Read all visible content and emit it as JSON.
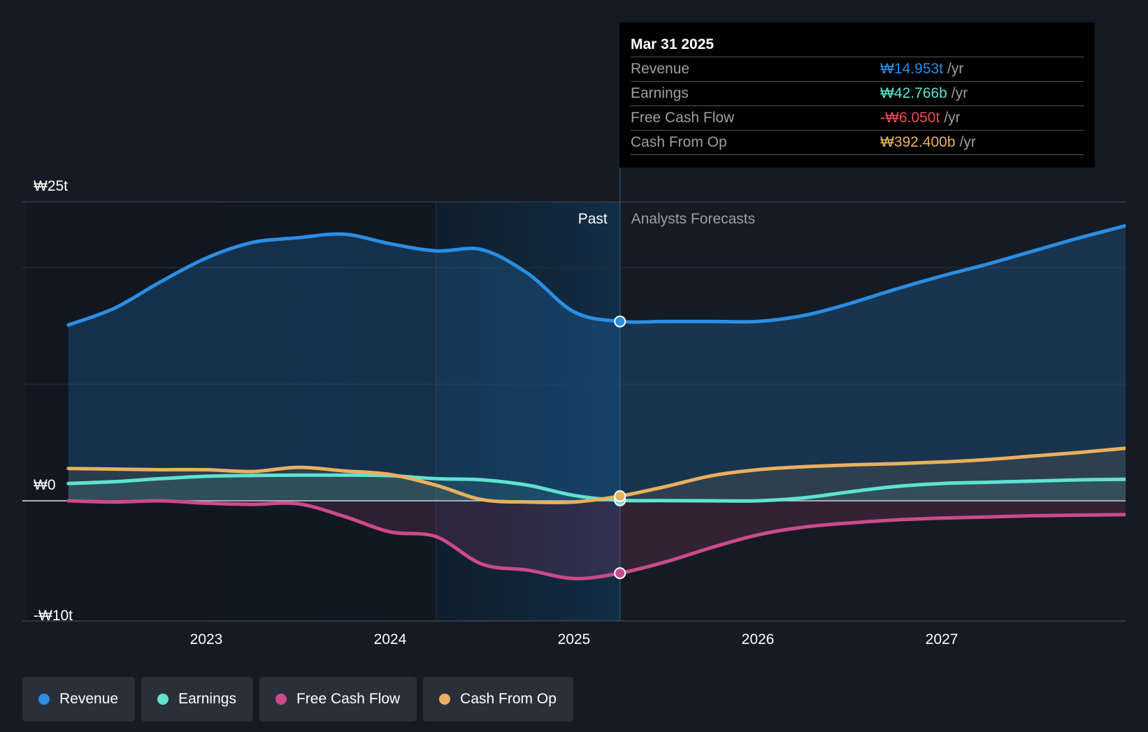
{
  "chart_data": {
    "type": "area",
    "currency_symbol": "₩",
    "y_unit": "trillion KRW",
    "ylim": [
      -10,
      25
    ],
    "y_ticks": [
      {
        "value": 25,
        "label": "₩25t"
      },
      {
        "value": 0,
        "label": "₩0"
      },
      {
        "value": -10,
        "label": "-₩10t"
      }
    ],
    "x_ticks": [
      {
        "value": 2023,
        "label": "2023"
      },
      {
        "value": 2024,
        "label": "2024"
      },
      {
        "value": 2025,
        "label": "2025"
      },
      {
        "value": 2026,
        "label": "2026"
      },
      {
        "value": 2027,
        "label": "2027"
      }
    ],
    "xlim": [
      2022.0,
      2028.0
    ],
    "past_label": "Past",
    "forecast_label": "Analysts Forecasts",
    "divider_x": 2025.25,
    "highlight_start_x": 2024.25,
    "series": [
      {
        "name": "Revenue",
        "color": "#2a8ee4",
        "fill": true,
        "points": [
          [
            2022.25,
            14.7
          ],
          [
            2022.5,
            16.1
          ],
          [
            2022.75,
            18.3
          ],
          [
            2023.0,
            20.3
          ],
          [
            2023.25,
            21.6
          ],
          [
            2023.5,
            22.0
          ],
          [
            2023.75,
            22.3
          ],
          [
            2024.0,
            21.5
          ],
          [
            2024.25,
            20.9
          ],
          [
            2024.5,
            21.0
          ],
          [
            2024.75,
            19.0
          ],
          [
            2025.0,
            15.8
          ],
          [
            2025.25,
            15.0
          ],
          [
            2025.5,
            15.0
          ],
          [
            2025.75,
            15.0
          ],
          [
            2026.0,
            15.0
          ],
          [
            2026.25,
            15.5
          ],
          [
            2026.5,
            16.5
          ],
          [
            2026.75,
            17.7
          ],
          [
            2027.0,
            18.8
          ],
          [
            2027.25,
            19.8
          ],
          [
            2027.5,
            20.9
          ],
          [
            2027.75,
            22.0
          ],
          [
            2028.0,
            23.0
          ]
        ]
      },
      {
        "name": "Earnings",
        "color": "#5ee3d1",
        "fill": true,
        "points": [
          [
            2022.25,
            1.45
          ],
          [
            2022.5,
            1.6
          ],
          [
            2022.75,
            1.85
          ],
          [
            2023.0,
            2.05
          ],
          [
            2023.25,
            2.12
          ],
          [
            2023.5,
            2.15
          ],
          [
            2023.75,
            2.15
          ],
          [
            2024.0,
            2.1
          ],
          [
            2024.25,
            1.85
          ],
          [
            2024.5,
            1.75
          ],
          [
            2024.75,
            1.3
          ],
          [
            2025.0,
            0.45
          ],
          [
            2025.25,
            0.04
          ],
          [
            2025.5,
            0.02
          ],
          [
            2025.75,
            0.0
          ],
          [
            2026.0,
            0.0
          ],
          [
            2026.25,
            0.25
          ],
          [
            2026.5,
            0.75
          ],
          [
            2026.75,
            1.2
          ],
          [
            2027.0,
            1.45
          ],
          [
            2027.25,
            1.55
          ],
          [
            2027.5,
            1.65
          ],
          [
            2027.75,
            1.75
          ],
          [
            2028.0,
            1.8
          ]
        ]
      },
      {
        "name": "Free Cash Flow",
        "color": "#cc4a8b",
        "fill": true,
        "points": [
          [
            2022.25,
            0.0
          ],
          [
            2022.5,
            -0.1
          ],
          [
            2022.75,
            0.0
          ],
          [
            2023.0,
            -0.2
          ],
          [
            2023.25,
            -0.3
          ],
          [
            2023.5,
            -0.25
          ],
          [
            2023.75,
            -1.3
          ],
          [
            2024.0,
            -2.6
          ],
          [
            2024.25,
            -3.0
          ],
          [
            2024.5,
            -5.3
          ],
          [
            2024.75,
            -5.8
          ],
          [
            2025.0,
            -6.5
          ],
          [
            2025.25,
            -6.05
          ],
          [
            2025.5,
            -5.1
          ],
          [
            2025.75,
            -3.9
          ],
          [
            2026.0,
            -2.85
          ],
          [
            2026.25,
            -2.2
          ],
          [
            2026.5,
            -1.85
          ],
          [
            2026.75,
            -1.6
          ],
          [
            2027.0,
            -1.45
          ],
          [
            2027.25,
            -1.35
          ],
          [
            2027.5,
            -1.25
          ],
          [
            2027.75,
            -1.2
          ],
          [
            2028.0,
            -1.15
          ]
        ]
      },
      {
        "name": "Cash From Op",
        "color": "#e9b05f",
        "fill": true,
        "points": [
          [
            2022.25,
            2.7
          ],
          [
            2022.5,
            2.65
          ],
          [
            2022.75,
            2.6
          ],
          [
            2023.0,
            2.6
          ],
          [
            2023.25,
            2.45
          ],
          [
            2023.5,
            2.8
          ],
          [
            2023.75,
            2.5
          ],
          [
            2024.0,
            2.2
          ],
          [
            2024.25,
            1.3
          ],
          [
            2024.5,
            0.1
          ],
          [
            2024.75,
            -0.1
          ],
          [
            2025.0,
            -0.1
          ],
          [
            2025.25,
            0.39
          ],
          [
            2025.5,
            1.2
          ],
          [
            2025.75,
            2.1
          ],
          [
            2026.0,
            2.6
          ],
          [
            2026.25,
            2.85
          ],
          [
            2026.5,
            3.0
          ],
          [
            2026.75,
            3.1
          ],
          [
            2027.0,
            3.25
          ],
          [
            2027.25,
            3.45
          ],
          [
            2027.5,
            3.75
          ],
          [
            2027.75,
            4.05
          ],
          [
            2028.0,
            4.4
          ]
        ]
      }
    ]
  },
  "tooltip": {
    "date": "Mar 31 2025",
    "rows": [
      {
        "label": "Revenue",
        "value": "₩14.953t",
        "unit": "/yr",
        "color": "#2a8ee4"
      },
      {
        "label": "Earnings",
        "value": "₩42.766b",
        "unit": "/yr",
        "color": "#5ee3d1"
      },
      {
        "label": "Free Cash Flow",
        "value": "-₩6.050t",
        "unit": "/yr",
        "color": "#e84c55"
      },
      {
        "label": "Cash From Op",
        "value": "₩392.400b",
        "unit": "/yr",
        "color": "#e9b05f"
      }
    ]
  },
  "legend": [
    {
      "label": "Revenue",
      "color": "#2a8ee4"
    },
    {
      "label": "Earnings",
      "color": "#5ee3d1"
    },
    {
      "label": "Free Cash Flow",
      "color": "#cc4a8b"
    },
    {
      "label": "Cash From Op",
      "color": "#e9b05f"
    }
  ]
}
